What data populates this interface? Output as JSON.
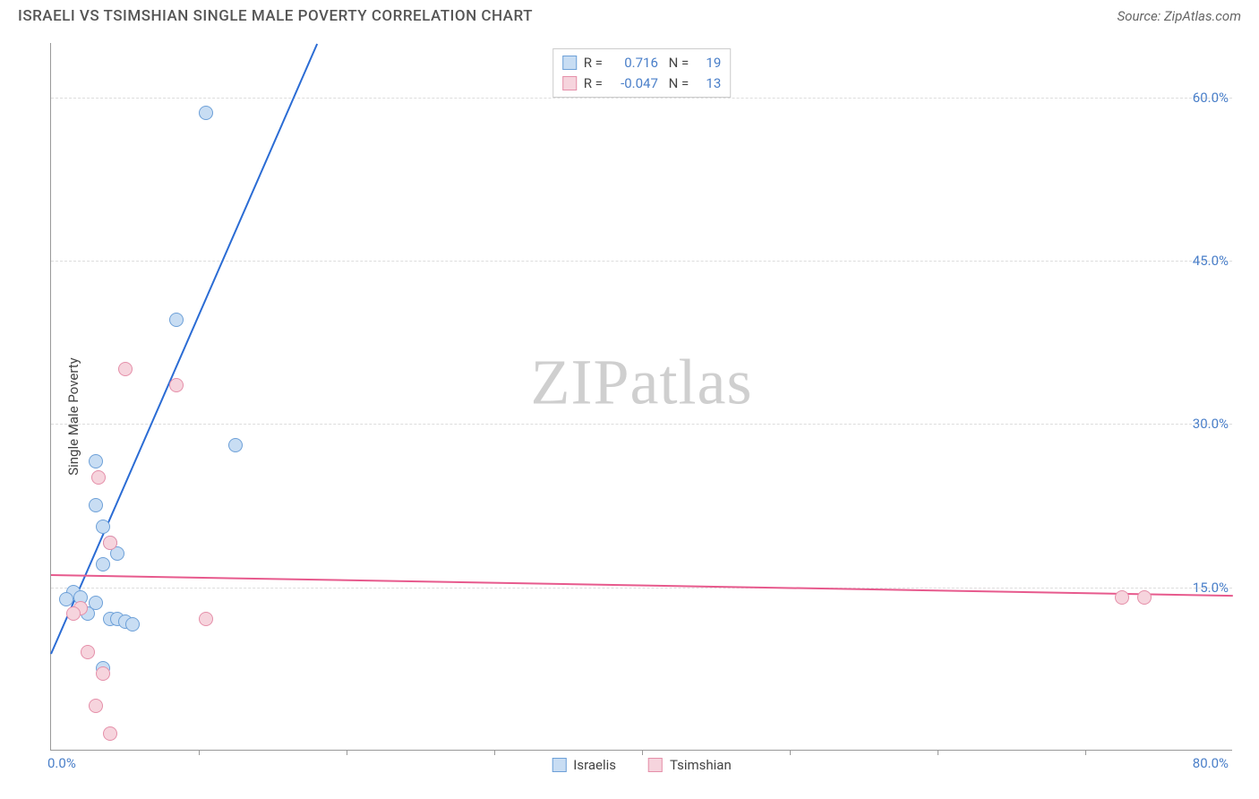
{
  "title": "ISRAELI VS TSIMSHIAN SINGLE MALE POVERTY CORRELATION CHART",
  "source": "Source: ZipAtlas.com",
  "ylabel": "Single Male Poverty",
  "watermark": {
    "zip": "ZIP",
    "atlas": "atlas"
  },
  "chart": {
    "type": "scatter",
    "xlim": [
      0,
      80
    ],
    "ylim": [
      0,
      65
    ],
    "xtick_positions": [
      10,
      20,
      30,
      40,
      50,
      60,
      70
    ],
    "xtick_labels": {
      "min": "0.0%",
      "max": "80.0%"
    },
    "ytick_labels": [
      {
        "v": 15,
        "label": "15.0%"
      },
      {
        "v": 30,
        "label": "30.0%"
      },
      {
        "v": 45,
        "label": "45.0%"
      },
      {
        "v": 60,
        "label": "60.0%"
      }
    ],
    "grid_color": "#dddddd",
    "background_color": "#ffffff",
    "marker_size": 16,
    "series": [
      {
        "name": "Israelis",
        "fill": "#c8ddf3",
        "stroke": "#6da0d8",
        "trend_color": "#2b6cd4",
        "R": "0.716",
        "N": "19",
        "trend": {
          "x1": 0,
          "y1": 9,
          "x2": 18,
          "y2": 65
        },
        "points": [
          [
            10.5,
            58.5
          ],
          [
            8.5,
            39.5
          ],
          [
            12.5,
            28.0
          ],
          [
            3.0,
            26.5
          ],
          [
            3.0,
            22.5
          ],
          [
            3.5,
            20.5
          ],
          [
            4.0,
            19.0
          ],
          [
            4.5,
            18.0
          ],
          [
            3.5,
            17.0
          ],
          [
            1.5,
            14.5
          ],
          [
            2.0,
            14.0
          ],
          [
            3.0,
            13.5
          ],
          [
            2.5,
            12.5
          ],
          [
            4.0,
            12.0
          ],
          [
            4.5,
            12.0
          ],
          [
            5.0,
            11.8
          ],
          [
            5.5,
            11.5
          ],
          [
            3.5,
            7.5
          ],
          [
            1.0,
            13.8
          ]
        ]
      },
      {
        "name": "Tsimshian",
        "fill": "#f6d4dd",
        "stroke": "#e58fa9",
        "trend_color": "#e75a8d",
        "R": "-0.047",
        "N": "13",
        "trend": {
          "x1": 0,
          "y1": 16.2,
          "x2": 80,
          "y2": 14.3
        },
        "points": [
          [
            5.0,
            35.0
          ],
          [
            8.5,
            33.5
          ],
          [
            3.2,
            25.0
          ],
          [
            4.0,
            19.0
          ],
          [
            72.5,
            14.0
          ],
          [
            74.0,
            14.0
          ],
          [
            10.5,
            12.0
          ],
          [
            2.0,
            13.0
          ],
          [
            1.5,
            12.5
          ],
          [
            2.5,
            9.0
          ],
          [
            3.5,
            7.0
          ],
          [
            3.0,
            4.0
          ],
          [
            4.0,
            1.5
          ]
        ]
      }
    ]
  },
  "legend_bottom": [
    "Israelis",
    "Tsimshian"
  ]
}
